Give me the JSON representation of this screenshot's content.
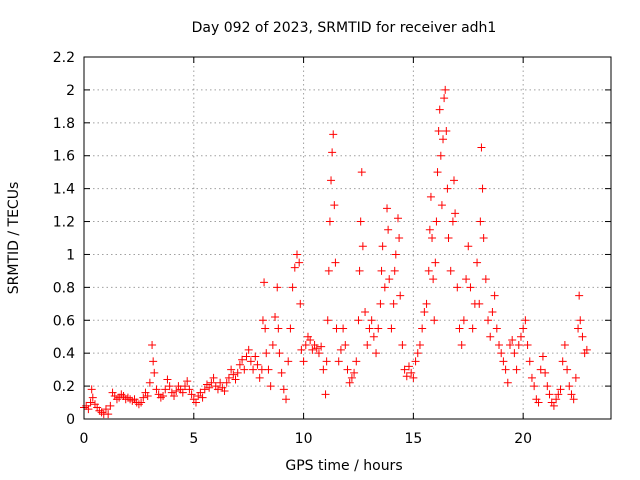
{
  "chart_data": {
    "type": "scatter",
    "title": "Day 092 of 2023, SRMTID for receiver adh1",
    "xlabel": "GPS time / hours",
    "ylabel": "SRMTID / TECUs",
    "xlim": [
      0,
      24
    ],
    "ylim": [
      0,
      2.2
    ],
    "x_ticks": [
      0,
      5,
      10,
      15,
      20
    ],
    "x_tick_labels": [
      "0",
      "5",
      "10",
      "15",
      "20"
    ],
    "y_ticks": [
      0,
      0.2,
      0.4,
      0.6,
      0.8,
      1,
      1.2,
      1.4,
      1.6,
      1.8,
      2,
      2.2
    ],
    "y_tick_labels": [
      "0",
      "0.2",
      "0.4",
      "0.6",
      "0.8",
      "1",
      "1.2",
      "1.4",
      "1.6",
      "1.8",
      "2",
      "2.2"
    ],
    "grid": true,
    "marker": "+",
    "series": [
      {
        "name": "SRMTID",
        "color": "#ff0000",
        "points": [
          [
            0.0,
            0.07
          ],
          [
            0.1,
            0.08
          ],
          [
            0.2,
            0.06
          ],
          [
            0.3,
            0.1
          ],
          [
            0.35,
            0.18
          ],
          [
            0.4,
            0.13
          ],
          [
            0.5,
            0.09
          ],
          [
            0.6,
            0.07
          ],
          [
            0.7,
            0.05
          ],
          [
            0.8,
            0.04
          ],
          [
            0.9,
            0.03
          ],
          [
            1.0,
            0.06
          ],
          [
            1.1,
            0.03
          ],
          [
            1.2,
            0.08
          ],
          [
            1.3,
            0.16
          ],
          [
            1.4,
            0.14
          ],
          [
            1.5,
            0.12
          ],
          [
            1.6,
            0.13
          ],
          [
            1.7,
            0.15
          ],
          [
            1.8,
            0.14
          ],
          [
            1.9,
            0.12
          ],
          [
            2.0,
            0.13
          ],
          [
            2.1,
            0.12
          ],
          [
            2.2,
            0.11
          ],
          [
            2.3,
            0.12
          ],
          [
            2.4,
            0.1
          ],
          [
            2.5,
            0.09
          ],
          [
            2.6,
            0.1
          ],
          [
            2.7,
            0.13
          ],
          [
            2.8,
            0.16
          ],
          [
            2.9,
            0.14
          ],
          [
            3.0,
            0.22
          ],
          [
            3.1,
            0.45
          ],
          [
            3.15,
            0.35
          ],
          [
            3.2,
            0.28
          ],
          [
            3.3,
            0.18
          ],
          [
            3.4,
            0.15
          ],
          [
            3.5,
            0.13
          ],
          [
            3.6,
            0.14
          ],
          [
            3.7,
            0.18
          ],
          [
            3.8,
            0.24
          ],
          [
            3.9,
            0.2
          ],
          [
            4.0,
            0.16
          ],
          [
            4.1,
            0.14
          ],
          [
            4.2,
            0.17
          ],
          [
            4.3,
            0.2
          ],
          [
            4.4,
            0.18
          ],
          [
            4.5,
            0.16
          ],
          [
            4.6,
            0.2
          ],
          [
            4.7,
            0.23
          ],
          [
            4.8,
            0.18
          ],
          [
            4.9,
            0.15
          ],
          [
            5.0,
            0.12
          ],
          [
            5.1,
            0.1
          ],
          [
            5.2,
            0.14
          ],
          [
            5.3,
            0.16
          ],
          [
            5.4,
            0.13
          ],
          [
            5.5,
            0.18
          ],
          [
            5.6,
            0.21
          ],
          [
            5.7,
            0.19
          ],
          [
            5.8,
            0.22
          ],
          [
            5.9,
            0.25
          ],
          [
            6.0,
            0.2
          ],
          [
            6.1,
            0.18
          ],
          [
            6.2,
            0.22
          ],
          [
            6.3,
            0.19
          ],
          [
            6.4,
            0.17
          ],
          [
            6.5,
            0.22
          ],
          [
            6.6,
            0.25
          ],
          [
            6.7,
            0.3
          ],
          [
            6.8,
            0.27
          ],
          [
            6.9,
            0.24
          ],
          [
            7.0,
            0.28
          ],
          [
            7.1,
            0.33
          ],
          [
            7.2,
            0.36
          ],
          [
            7.3,
            0.3
          ],
          [
            7.4,
            0.38
          ],
          [
            7.5,
            0.42
          ],
          [
            7.6,
            0.35
          ],
          [
            7.7,
            0.3
          ],
          [
            7.8,
            0.38
          ],
          [
            7.9,
            0.33
          ],
          [
            8.0,
            0.25
          ],
          [
            8.1,
            0.3
          ],
          [
            8.15,
            0.6
          ],
          [
            8.2,
            0.83
          ],
          [
            8.25,
            0.55
          ],
          [
            8.3,
            0.4
          ],
          [
            8.4,
            0.3
          ],
          [
            8.5,
            0.2
          ],
          [
            8.6,
            0.45
          ],
          [
            8.7,
            0.62
          ],
          [
            8.8,
            0.8
          ],
          [
            8.85,
            0.55
          ],
          [
            8.9,
            0.4
          ],
          [
            9.0,
            0.28
          ],
          [
            9.1,
            0.18
          ],
          [
            9.2,
            0.12
          ],
          [
            9.3,
            0.35
          ],
          [
            9.4,
            0.55
          ],
          [
            9.5,
            0.8
          ],
          [
            9.6,
            0.92
          ],
          [
            9.7,
            1.0
          ],
          [
            9.8,
            0.95
          ],
          [
            9.85,
            0.7
          ],
          [
            9.9,
            0.42
          ],
          [
            10.0,
            0.35
          ],
          [
            10.1,
            0.45
          ],
          [
            10.2,
            0.5
          ],
          [
            10.3,
            0.48
          ],
          [
            10.4,
            0.42
          ],
          [
            10.5,
            0.45
          ],
          [
            10.6,
            0.43
          ],
          [
            10.7,
            0.4
          ],
          [
            10.8,
            0.44
          ],
          [
            10.9,
            0.3
          ],
          [
            11.0,
            0.15
          ],
          [
            11.05,
            0.35
          ],
          [
            11.1,
            0.6
          ],
          [
            11.15,
            0.9
          ],
          [
            11.2,
            1.2
          ],
          [
            11.25,
            1.45
          ],
          [
            11.3,
            1.62
          ],
          [
            11.35,
            1.73
          ],
          [
            11.4,
            1.3
          ],
          [
            11.45,
            0.95
          ],
          [
            11.5,
            0.55
          ],
          [
            11.6,
            0.35
          ],
          [
            11.7,
            0.42
          ],
          [
            11.8,
            0.55
          ],
          [
            11.9,
            0.45
          ],
          [
            12.0,
            0.3
          ],
          [
            12.1,
            0.22
          ],
          [
            12.2,
            0.25
          ],
          [
            12.3,
            0.28
          ],
          [
            12.4,
            0.35
          ],
          [
            12.5,
            0.6
          ],
          [
            12.55,
            0.9
          ],
          [
            12.6,
            1.2
          ],
          [
            12.65,
            1.5
          ],
          [
            12.7,
            1.05
          ],
          [
            12.8,
            0.65
          ],
          [
            12.9,
            0.45
          ],
          [
            13.0,
            0.55
          ],
          [
            13.1,
            0.6
          ],
          [
            13.2,
            0.5
          ],
          [
            13.3,
            0.4
          ],
          [
            13.4,
            0.55
          ],
          [
            13.5,
            0.7
          ],
          [
            13.55,
            0.9
          ],
          [
            13.6,
            1.05
          ],
          [
            13.7,
            0.8
          ],
          [
            13.8,
            1.28
          ],
          [
            13.85,
            1.15
          ],
          [
            13.9,
            0.85
          ],
          [
            14.0,
            0.55
          ],
          [
            14.1,
            0.7
          ],
          [
            14.15,
            0.9
          ],
          [
            14.2,
            1.0
          ],
          [
            14.3,
            1.22
          ],
          [
            14.35,
            1.1
          ],
          [
            14.4,
            0.75
          ],
          [
            14.5,
            0.45
          ],
          [
            14.6,
            0.3
          ],
          [
            14.7,
            0.26
          ],
          [
            14.8,
            0.32
          ],
          [
            14.9,
            0.28
          ],
          [
            15.0,
            0.25
          ],
          [
            15.1,
            0.35
          ],
          [
            15.2,
            0.4
          ],
          [
            15.3,
            0.45
          ],
          [
            15.4,
            0.55
          ],
          [
            15.5,
            0.65
          ],
          [
            15.6,
            0.7
          ],
          [
            15.7,
            0.9
          ],
          [
            15.75,
            1.15
          ],
          [
            15.8,
            1.35
          ],
          [
            15.85,
            1.1
          ],
          [
            15.9,
            0.85
          ],
          [
            15.95,
            0.6
          ],
          [
            16.0,
            0.95
          ],
          [
            16.05,
            1.2
          ],
          [
            16.1,
            1.5
          ],
          [
            16.15,
            1.75
          ],
          [
            16.2,
            1.88
          ],
          [
            16.25,
            1.6
          ],
          [
            16.3,
            1.3
          ],
          [
            16.35,
            1.7
          ],
          [
            16.4,
            1.95
          ],
          [
            16.45,
            2.0
          ],
          [
            16.5,
            1.75
          ],
          [
            16.55,
            1.4
          ],
          [
            16.6,
            1.1
          ],
          [
            16.7,
            0.9
          ],
          [
            16.8,
            1.2
          ],
          [
            16.85,
            1.45
          ],
          [
            16.9,
            1.25
          ],
          [
            17.0,
            0.8
          ],
          [
            17.1,
            0.55
          ],
          [
            17.2,
            0.45
          ],
          [
            17.3,
            0.6
          ],
          [
            17.4,
            0.85
          ],
          [
            17.5,
            1.05
          ],
          [
            17.6,
            0.8
          ],
          [
            17.7,
            0.55
          ],
          [
            17.8,
            0.7
          ],
          [
            17.9,
            0.95
          ],
          [
            18.0,
            0.7
          ],
          [
            18.05,
            1.2
          ],
          [
            18.1,
            1.65
          ],
          [
            18.15,
            1.4
          ],
          [
            18.2,
            1.1
          ],
          [
            18.3,
            0.85
          ],
          [
            18.4,
            0.6
          ],
          [
            18.5,
            0.5
          ],
          [
            18.6,
            0.65
          ],
          [
            18.7,
            0.75
          ],
          [
            18.8,
            0.55
          ],
          [
            18.9,
            0.45
          ],
          [
            19.0,
            0.4
          ],
          [
            19.1,
            0.35
          ],
          [
            19.2,
            0.3
          ],
          [
            19.3,
            0.22
          ],
          [
            19.4,
            0.45
          ],
          [
            19.5,
            0.48
          ],
          [
            19.6,
            0.4
          ],
          [
            19.7,
            0.3
          ],
          [
            19.8,
            0.45
          ],
          [
            19.9,
            0.5
          ],
          [
            20.0,
            0.55
          ],
          [
            20.1,
            0.6
          ],
          [
            20.2,
            0.45
          ],
          [
            20.3,
            0.35
          ],
          [
            20.4,
            0.25
          ],
          [
            20.5,
            0.2
          ],
          [
            20.6,
            0.12
          ],
          [
            20.7,
            0.1
          ],
          [
            20.8,
            0.3
          ],
          [
            20.9,
            0.38
          ],
          [
            21.0,
            0.28
          ],
          [
            21.1,
            0.2
          ],
          [
            21.2,
            0.15
          ],
          [
            21.3,
            0.1
          ],
          [
            21.4,
            0.08
          ],
          [
            21.5,
            0.12
          ],
          [
            21.6,
            0.15
          ],
          [
            21.7,
            0.18
          ],
          [
            21.8,
            0.35
          ],
          [
            21.9,
            0.45
          ],
          [
            22.0,
            0.3
          ],
          [
            22.1,
            0.2
          ],
          [
            22.2,
            0.15
          ],
          [
            22.3,
            0.12
          ],
          [
            22.4,
            0.25
          ],
          [
            22.5,
            0.55
          ],
          [
            22.55,
            0.75
          ],
          [
            22.6,
            0.6
          ],
          [
            22.7,
            0.5
          ],
          [
            22.8,
            0.4
          ],
          [
            22.9,
            0.42
          ]
        ]
      }
    ]
  }
}
